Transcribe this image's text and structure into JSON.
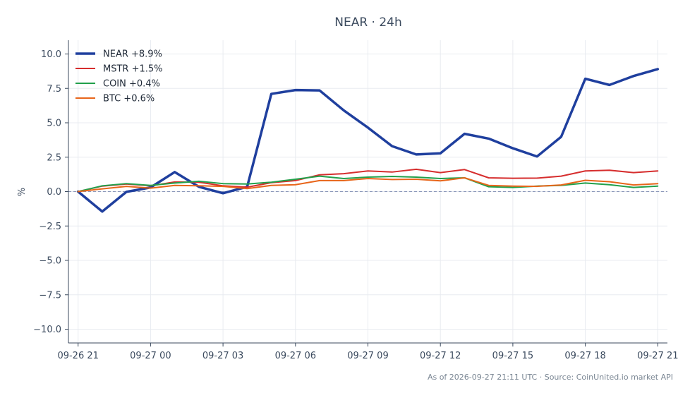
{
  "chart_data": {
    "type": "line",
    "title": "NEAR · 24h",
    "xlabel": "",
    "ylabel": "%",
    "ylim": [
      -11,
      11
    ],
    "yticks": [
      -10.0,
      -7.5,
      -5.0,
      -2.5,
      0.0,
      2.5,
      5.0,
      7.5,
      10.0
    ],
    "ytick_labels": [
      "−10.0",
      "−7.5",
      "−5.0",
      "−2.5",
      "0.0",
      "2.5",
      "5.0",
      "7.5",
      "10.0"
    ],
    "xlim": [
      -0.4,
      24.4
    ],
    "xtick_positions": [
      0,
      3,
      6,
      9,
      12,
      15,
      18,
      21,
      24
    ],
    "xtick_labels": [
      "09-26 21",
      "09-27 00",
      "09-27 03",
      "09-27 06",
      "09-27 09",
      "09-27 12",
      "09-27 15",
      "09-27 18",
      "09-27 21"
    ],
    "x": [
      "09-26 21",
      "09-26 22",
      "09-26 23",
      "09-27 00",
      "09-27 01",
      "09-27 02",
      "09-27 03",
      "09-27 04",
      "09-27 05",
      "09-27 06",
      "09-27 07",
      "09-27 08",
      "09-27 09",
      "09-27 10",
      "09-27 11",
      "09-27 12",
      "09-27 13",
      "09-27 14",
      "09-27 15",
      "09-27 16",
      "09-27 17",
      "09-27 18",
      "09-27 19",
      "09-27 20",
      "09-27 21"
    ],
    "grid": true,
    "zero_line": true,
    "legend_position": "top-left",
    "series": [
      {
        "name": "NEAR +8.9%",
        "color": "#1f3f9e",
        "values": [
          0.0,
          -1.45,
          -0.02,
          0.3,
          1.42,
          0.35,
          -0.12,
          0.35,
          7.1,
          7.38,
          7.35,
          5.9,
          4.65,
          3.3,
          2.7,
          2.78,
          4.2,
          3.85,
          3.15,
          2.55,
          3.98,
          8.2,
          7.75,
          8.4,
          8.9
        ]
      },
      {
        "name": "MSTR +1.5%",
        "color": "#d62e2e",
        "values": [
          0.0,
          0.4,
          0.55,
          0.42,
          0.7,
          0.68,
          0.42,
          0.32,
          0.65,
          0.8,
          1.22,
          1.3,
          1.5,
          1.42,
          1.62,
          1.38,
          1.6,
          1.0,
          0.97,
          0.98,
          1.12,
          1.5,
          1.55,
          1.38,
          1.5
        ]
      },
      {
        "name": "COIN +0.4%",
        "color": "#22a04b",
        "values": [
          0.0,
          0.42,
          0.58,
          0.45,
          0.62,
          0.75,
          0.58,
          0.55,
          0.68,
          0.9,
          1.12,
          0.95,
          1.05,
          1.1,
          1.05,
          0.95,
          1.0,
          0.35,
          0.3,
          0.4,
          0.45,
          0.62,
          0.5,
          0.3,
          0.4
        ]
      },
      {
        "name": "BTC +0.6%",
        "color": "#e8651a",
        "values": [
          0.0,
          0.2,
          0.38,
          0.25,
          0.45,
          0.42,
          0.38,
          0.22,
          0.45,
          0.5,
          0.8,
          0.8,
          0.95,
          0.88,
          0.9,
          0.78,
          1.0,
          0.45,
          0.4,
          0.38,
          0.48,
          0.82,
          0.72,
          0.48,
          0.58
        ]
      }
    ],
    "footer": "As of 2026-09-27 21:11 UTC · Source: CoinUnited.io market API",
    "colors": {
      "axis": "#3b4a5e",
      "grid": "#e8ebf0",
      "zero_line": "#8a96b8"
    }
  }
}
